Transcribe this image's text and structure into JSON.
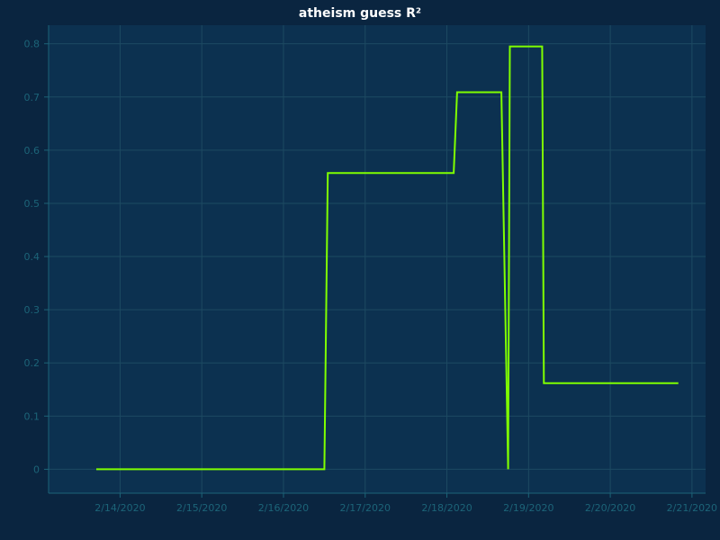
{
  "chart_data": {
    "type": "line",
    "title": "atheism guess R²",
    "xlabel": "",
    "ylabel": "",
    "x_ticks": [
      "2/14/2020",
      "2/15/2020",
      "2/16/2020",
      "2/17/2020",
      "2/18/2020",
      "2/19/2020",
      "2/20/2020",
      "2/21/2020"
    ],
    "y_ticks": [
      "0",
      "0.1",
      "0.2",
      "0.3",
      "0.4",
      "0.5",
      "0.6",
      "0.7",
      "0.8"
    ],
    "xlim": [
      "2/13/2020 03:00",
      "2/21/2020 04:00"
    ],
    "ylim": [
      -0.045,
      0.835
    ],
    "grid": true,
    "series": [
      {
        "color": "#7fff00",
        "points": [
          {
            "x": "2/13/2020 17:00",
            "y": 0
          },
          {
            "x": "2/16/2020 12:00",
            "y": 0
          },
          {
            "x": "2/16/2020 13:00",
            "y": 0.557
          },
          {
            "x": "2/18/2020 02:00",
            "y": 0.557
          },
          {
            "x": "2/18/2020 03:00",
            "y": 0.709
          },
          {
            "x": "2/18/2020 16:00",
            "y": 0.709
          },
          {
            "x": "2/18/2020 18:00",
            "y": 0
          },
          {
            "x": "2/18/2020 18:30",
            "y": 0.795
          },
          {
            "x": "2/19/2020 04:00",
            "y": 0.795
          },
          {
            "x": "2/19/2020 04:30",
            "y": 0.162
          },
          {
            "x": "2/20/2020 20:00",
            "y": 0.162
          }
        ]
      }
    ]
  }
}
